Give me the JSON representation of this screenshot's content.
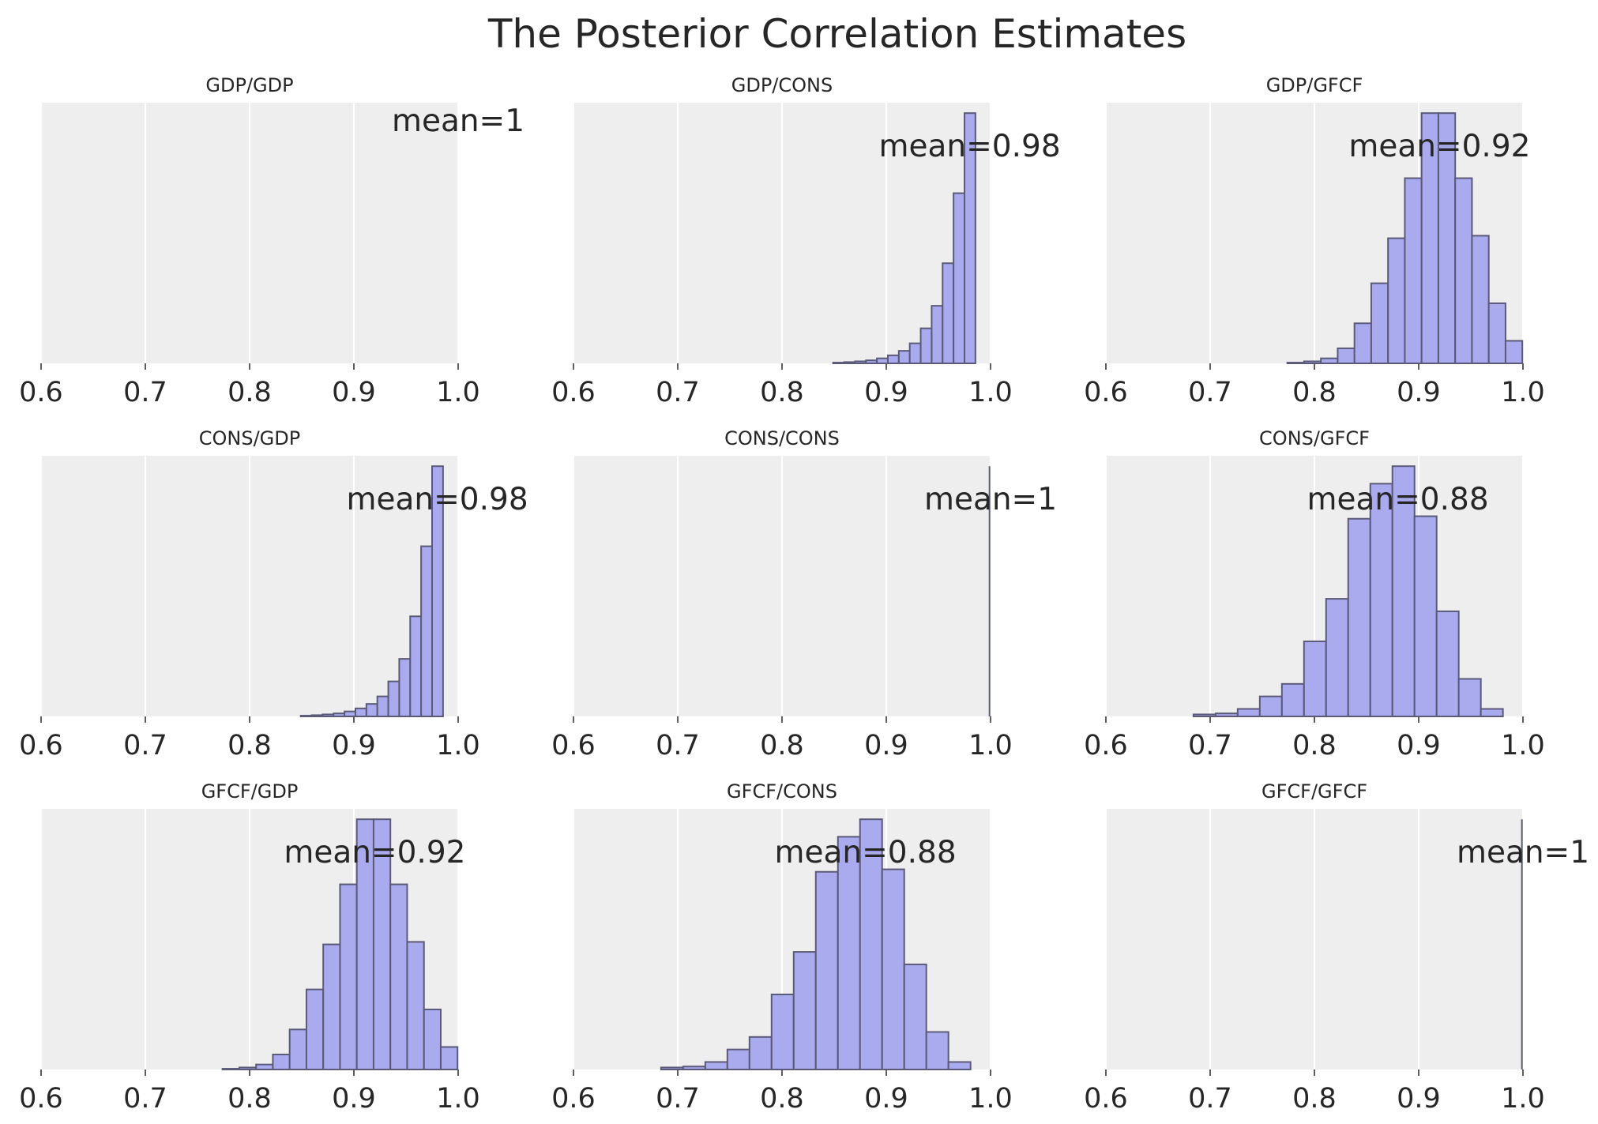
{
  "chart_data": {
    "title": "The Posterior Correlation Estimates",
    "type": "histogram-grid",
    "xlim": [
      0.6,
      1.0
    ],
    "xticks": [
      "0.6",
      "0.7",
      "0.8",
      "0.9",
      "1.0"
    ],
    "xtick_values": [
      0.6,
      0.7,
      0.8,
      0.9,
      1.0
    ],
    "bar_color": "#aaaaee",
    "edge_color": "#5a5a78",
    "panels": [
      {
        "title": "GDP/GDP",
        "mean_label": "mean=1",
        "bin_start": 1.0,
        "bin_width": 0.0,
        "values": [],
        "spike_at": null
      },
      {
        "title": "GDP/CONS",
        "mean_label": "mean=0.98",
        "bin_start": 0.849,
        "bin_width": 0.0105,
        "values": [
          0.003,
          0.005,
          0.008,
          0.012,
          0.02,
          0.032,
          0.05,
          0.08,
          0.14,
          0.23,
          0.4,
          0.68,
          1.0
        ]
      },
      {
        "title": "GDP/GFCF",
        "mean_label": "mean=0.92",
        "bin_start": 0.774,
        "bin_width": 0.0161,
        "values": [
          0.003,
          0.008,
          0.02,
          0.06,
          0.16,
          0.32,
          0.5,
          0.74,
          1.0,
          1.0,
          0.74,
          0.51,
          0.24,
          0.09
        ]
      },
      {
        "title": "CONS/GDP",
        "mean_label": "mean=0.98",
        "bin_start": 0.849,
        "bin_width": 0.0105,
        "values": [
          0.003,
          0.005,
          0.008,
          0.012,
          0.02,
          0.032,
          0.05,
          0.08,
          0.14,
          0.23,
          0.4,
          0.68,
          1.0
        ]
      },
      {
        "title": "CONS/CONS",
        "mean_label": "mean=1",
        "bin_start": 1.0,
        "bin_width": 0.0,
        "values": [],
        "spike_at": 0.999
      },
      {
        "title": "CONS/GFCF",
        "mean_label": "mean=0.88",
        "bin_start": 0.684,
        "bin_width": 0.0212,
        "values": [
          0.008,
          0.012,
          0.03,
          0.08,
          0.13,
          0.3,
          0.47,
          0.79,
          0.93,
          1.0,
          0.8,
          0.42,
          0.15,
          0.03
        ]
      },
      {
        "title": "GFCF/GDP",
        "mean_label": "mean=0.92",
        "bin_start": 0.774,
        "bin_width": 0.0161,
        "values": [
          0.003,
          0.008,
          0.02,
          0.06,
          0.16,
          0.32,
          0.5,
          0.74,
          1.0,
          1.0,
          0.74,
          0.51,
          0.24,
          0.09
        ]
      },
      {
        "title": "GFCF/CONS",
        "mean_label": "mean=0.88",
        "bin_start": 0.684,
        "bin_width": 0.0212,
        "values": [
          0.008,
          0.012,
          0.03,
          0.08,
          0.13,
          0.3,
          0.47,
          0.79,
          0.93,
          1.0,
          0.8,
          0.42,
          0.15,
          0.03
        ]
      },
      {
        "title": "GFCF/GFCF",
        "mean_label": "mean=1",
        "bin_start": 1.0,
        "bin_width": 0.0,
        "values": [],
        "spike_at": 0.999
      }
    ]
  }
}
